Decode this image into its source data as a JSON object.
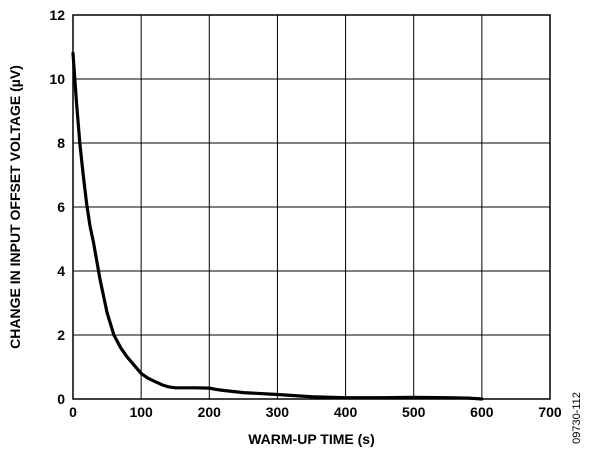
{
  "chart_data": {
    "type": "line",
    "title": "",
    "xlabel": "WARM-UP TIME (s)",
    "ylabel": "CHANGE IN INPUT OFFSET VOLTAGE (µV)",
    "xlim": [
      0,
      700
    ],
    "ylim": [
      0,
      12
    ],
    "x_ticks": [
      0,
      100,
      200,
      300,
      400,
      500,
      600,
      700
    ],
    "y_ticks": [
      0,
      2,
      4,
      6,
      8,
      10,
      12
    ],
    "x_tick_labels": [
      "0",
      "100",
      "200",
      "300",
      "400",
      "500",
      "600",
      "700"
    ],
    "y_tick_labels": [
      "0",
      "2",
      "4",
      "6",
      "8",
      "10",
      "12"
    ],
    "grid": true,
    "series": [
      {
        "x": [
          0,
          5,
          10,
          15,
          20,
          25,
          30,
          40,
          50,
          60,
          70,
          80,
          90,
          100,
          110,
          120,
          130,
          140,
          150,
          160,
          180,
          200,
          210,
          220,
          250,
          300,
          350,
          380,
          400,
          450,
          500,
          550,
          580,
          600
        ],
        "y": [
          10.8,
          9.3,
          8.0,
          7.0,
          6.1,
          5.4,
          4.9,
          3.7,
          2.7,
          2.0,
          1.6,
          1.3,
          1.05,
          0.8,
          0.65,
          0.55,
          0.45,
          0.38,
          0.35,
          0.35,
          0.35,
          0.34,
          0.3,
          0.27,
          0.2,
          0.14,
          0.07,
          0.05,
          0.04,
          0.04,
          0.05,
          0.04,
          0.03,
          0.0
        ]
      }
    ]
  },
  "figure_id": "09730-112"
}
